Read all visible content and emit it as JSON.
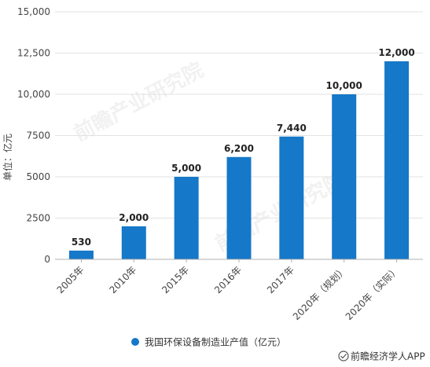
{
  "chart_data": {
    "type": "bar",
    "categories": [
      "2005年",
      "2010年",
      "2015年",
      "2016年",
      "2017年",
      "2020年（规划）",
      "2020年（实际）"
    ],
    "series": [
      {
        "name": "我国环保设备制造业产值（亿元）",
        "values": [
          530,
          2000,
          5000,
          6200,
          7440,
          10000,
          12000
        ]
      }
    ],
    "data_labels": [
      "530",
      "2,000",
      "5,000",
      "6,200",
      "7,440",
      "10,000",
      "12,000"
    ],
    "yticks": [
      "0",
      "2500",
      "5000",
      "7500",
      "10,000",
      "12,500",
      "15,000"
    ],
    "ylabel": "单位：亿元",
    "ylim": [
      0,
      15000
    ],
    "grid": true,
    "legend_position": "bottom"
  },
  "source": "前瞻经济学人APP",
  "watermark": "前瞻产业研究院",
  "colors": {
    "bar": "#1578c8",
    "grid": "#e2e2e2",
    "axis": "#b0b0b0"
  }
}
